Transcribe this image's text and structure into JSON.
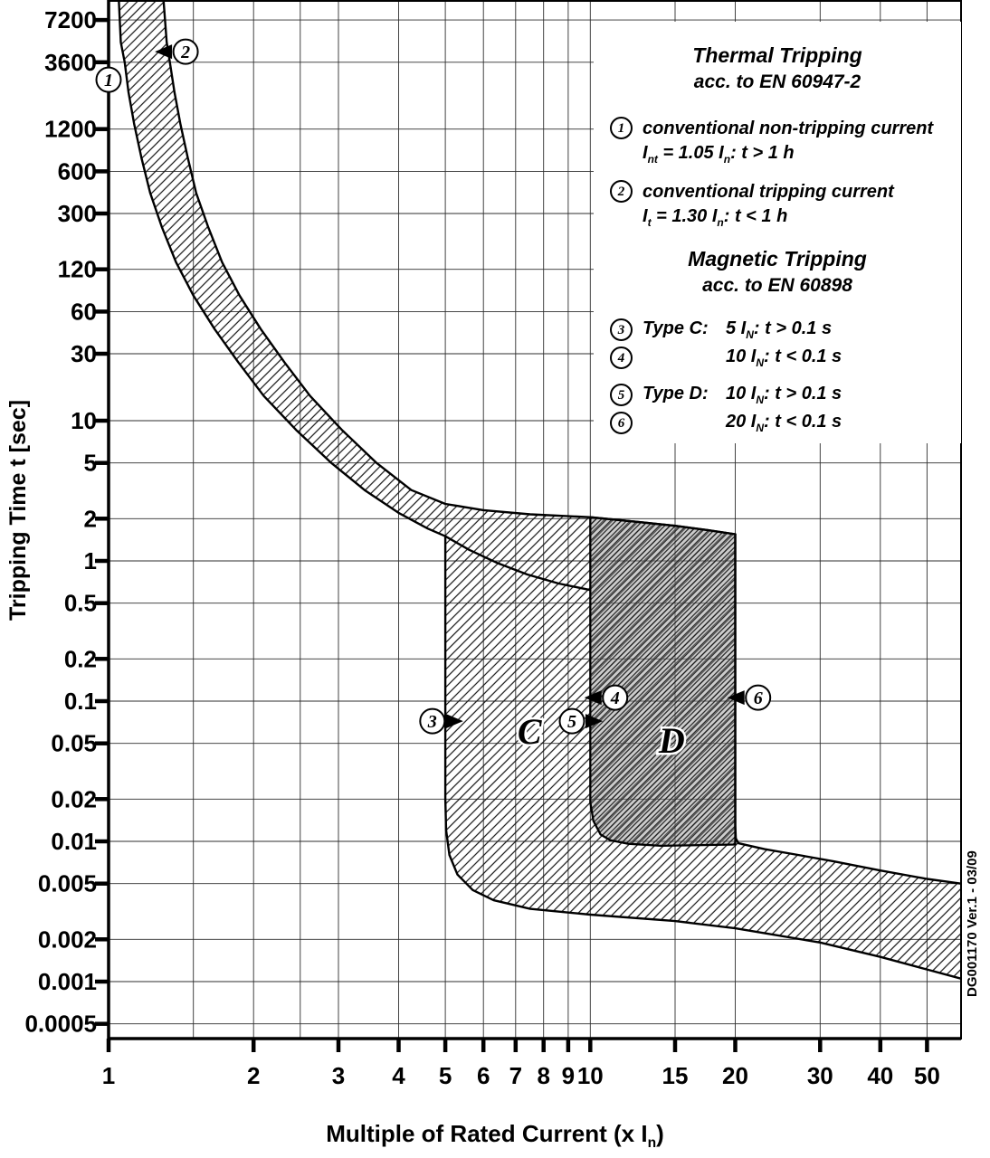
{
  "side_note": "DG001170 Ver.1 - 03/09",
  "axes": {
    "y_label": "Tripping Time t [sec]",
    "x_label": "Multiple of Rated Current (x I_{n})"
  },
  "legend": {
    "thermal": {
      "title": "Thermal Tripping",
      "subtitle": "acc. to EN 60947-2",
      "items": [
        {
          "num": "1",
          "desc": "conventional non-tripping current",
          "formula": "I_{nt} = 1.05 I_{n}:  t > 1 h"
        },
        {
          "num": "2",
          "desc": "conventional tripping current",
          "formula": "I_{t} = 1.30 I_{n}:  t < 1 h"
        }
      ]
    },
    "magnetic": {
      "title": "Magnetic Tripping",
      "subtitle": "acc. to EN 60898",
      "items": [
        {
          "num": "3",
          "type": "Type C:",
          "formula": "5 I_{N}: t > 0.1 s"
        },
        {
          "num": "4",
          "type": "",
          "formula": "10 I_{N}: t < 0.1 s"
        },
        {
          "num": "5",
          "type": "Type D:",
          "formula": "10 I_{N}: t > 0.1 s"
        },
        {
          "num": "6",
          "type": "",
          "formula": "20 I_{N}: t < 0.1 s"
        }
      ]
    }
  },
  "chart_data": {
    "type": "area",
    "title": "",
    "xlabel": "Multiple of Rated Current (x In)",
    "ylabel": "Tripping Time t [sec]",
    "x_scale": "log",
    "y_scale": "log",
    "xlim": [
      1,
      58.8
    ],
    "ylim": [
      0.000392,
      10000
    ],
    "grid": true,
    "x_ticks": [
      1,
      2,
      3,
      4,
      5,
      6,
      7,
      8,
      9,
      10,
      15,
      20,
      30,
      40,
      50
    ],
    "x_tick_labels": [
      "1",
      "2",
      "3",
      "4",
      "5",
      "6",
      "7",
      "8",
      "9",
      "10",
      "15",
      "20",
      "30",
      "40",
      "50"
    ],
    "x_minor_gridlines": [
      1.5,
      2.5
    ],
    "y_ticks": [
      7200,
      3600,
      1200,
      600,
      300,
      120,
      60,
      30,
      10,
      5,
      2,
      1,
      0.5,
      0.2,
      0.1,
      0.05,
      0.02,
      0.01,
      0.005,
      0.002,
      0.001,
      0.0005
    ],
    "y_tick_labels": [
      "7200",
      "3600",
      "1200",
      "600",
      "300",
      "120",
      "60",
      "30",
      "10",
      "5",
      "2",
      "1",
      "0.5",
      "0.2",
      "0.1",
      "0.05",
      "0.02",
      "0.01",
      "0.005",
      "0.002",
      "0.001",
      "0.0005"
    ],
    "series": [
      {
        "name": "thermal-lower-limit",
        "points": [
          [
            1.05,
            10000
          ],
          [
            1.06,
            5000
          ],
          [
            1.08,
            3600
          ],
          [
            1.1,
            2200
          ],
          [
            1.13,
            1300
          ],
          [
            1.17,
            750
          ],
          [
            1.22,
            420
          ],
          [
            1.29,
            240
          ],
          [
            1.38,
            135
          ],
          [
            1.5,
            78
          ],
          [
            1.66,
            45
          ],
          [
            1.86,
            26
          ],
          [
            2.1,
            15
          ],
          [
            2.45,
            8.6
          ],
          [
            2.9,
            5.0
          ],
          [
            3.4,
            3.2
          ],
          [
            4.0,
            2.2
          ],
          [
            4.6,
            1.7
          ],
          [
            5.0,
            1.5
          ],
          [
            5.6,
            1.2
          ],
          [
            6.4,
            0.97
          ],
          [
            7.4,
            0.8
          ],
          [
            8.6,
            0.69
          ],
          [
            10.0,
            0.62
          ]
        ]
      },
      {
        "name": "thermal-upper-limit",
        "points": [
          [
            1.3,
            10000
          ],
          [
            1.32,
            5000
          ],
          [
            1.34,
            3600
          ],
          [
            1.37,
            2200
          ],
          [
            1.41,
            1300
          ],
          [
            1.46,
            750
          ],
          [
            1.52,
            420
          ],
          [
            1.61,
            240
          ],
          [
            1.72,
            135
          ],
          [
            1.87,
            78
          ],
          [
            2.07,
            45
          ],
          [
            2.32,
            26
          ],
          [
            2.62,
            15
          ],
          [
            3.05,
            8.6
          ],
          [
            3.6,
            5.0
          ],
          [
            4.25,
            3.2
          ],
          [
            5.0,
            2.55
          ],
          [
            6.0,
            2.3
          ],
          [
            7.5,
            2.15
          ],
          [
            10.0,
            2.05
          ],
          [
            12.5,
            1.9
          ],
          [
            15.0,
            1.78
          ],
          [
            17.5,
            1.66
          ],
          [
            20.0,
            1.55
          ]
        ]
      },
      {
        "name": "type-c-left-and-instantaneous-lower",
        "points": [
          [
            5.0,
            1.5
          ],
          [
            5.0,
            0.02
          ],
          [
            5.02,
            0.012
          ],
          [
            5.1,
            0.008
          ],
          [
            5.3,
            0.0058
          ],
          [
            5.7,
            0.0045
          ],
          [
            6.3,
            0.0038
          ],
          [
            7.5,
            0.0033
          ],
          [
            10.0,
            0.003
          ],
          [
            15.0,
            0.0027
          ],
          [
            20.0,
            0.0024
          ],
          [
            30.0,
            0.0019
          ],
          [
            40.0,
            0.0015
          ],
          [
            50.0,
            0.00122
          ],
          [
            58.8,
            0.00105
          ]
        ]
      },
      {
        "name": "type-d-right-and-instantaneous-upper",
        "points": [
          [
            20.0,
            1.55
          ],
          [
            20.0,
            0.013
          ],
          [
            20.05,
            0.0105
          ],
          [
            20.3,
            0.0097
          ],
          [
            23.0,
            0.0088
          ],
          [
            27.0,
            0.008
          ],
          [
            32.0,
            0.0072
          ],
          [
            40.0,
            0.0062
          ],
          [
            50.0,
            0.0054
          ],
          [
            58.8,
            0.005
          ]
        ]
      },
      {
        "name": "type-d-region",
        "points": [
          [
            10.0,
            2.05
          ],
          [
            12.5,
            1.9
          ],
          [
            15.0,
            1.78
          ],
          [
            17.5,
            1.66
          ],
          [
            20.0,
            1.55
          ],
          [
            20.0,
            0.013
          ],
          [
            20.0,
            0.0095
          ],
          [
            14.0,
            0.0093
          ],
          [
            12.0,
            0.0096
          ],
          [
            11.0,
            0.0102
          ],
          [
            10.5,
            0.0112
          ],
          [
            10.15,
            0.014
          ],
          [
            10.0,
            0.019
          ]
        ]
      }
    ],
    "region_labels": [
      {
        "text": "C",
        "x": 7.48,
        "t": 0.0614
      },
      {
        "text": "D",
        "x": 14.76,
        "t": 0.0527
      }
    ],
    "markers": [
      {
        "label": "1",
        "x": 1.0,
        "t": 2700,
        "arrow": "none"
      },
      {
        "label": "2",
        "x": 1.445,
        "t": 4280,
        "arrow": "left"
      },
      {
        "label": "3",
        "x": 4.7,
        "t": 0.072,
        "arrow": "right"
      },
      {
        "label": "4",
        "x": 11.26,
        "t": 0.106,
        "arrow": "left"
      },
      {
        "label": "5",
        "x": 9.16,
        "t": 0.072,
        "arrow": "right"
      },
      {
        "label": "6",
        "x": 22.3,
        "t": 0.106,
        "arrow": "left"
      }
    ]
  }
}
